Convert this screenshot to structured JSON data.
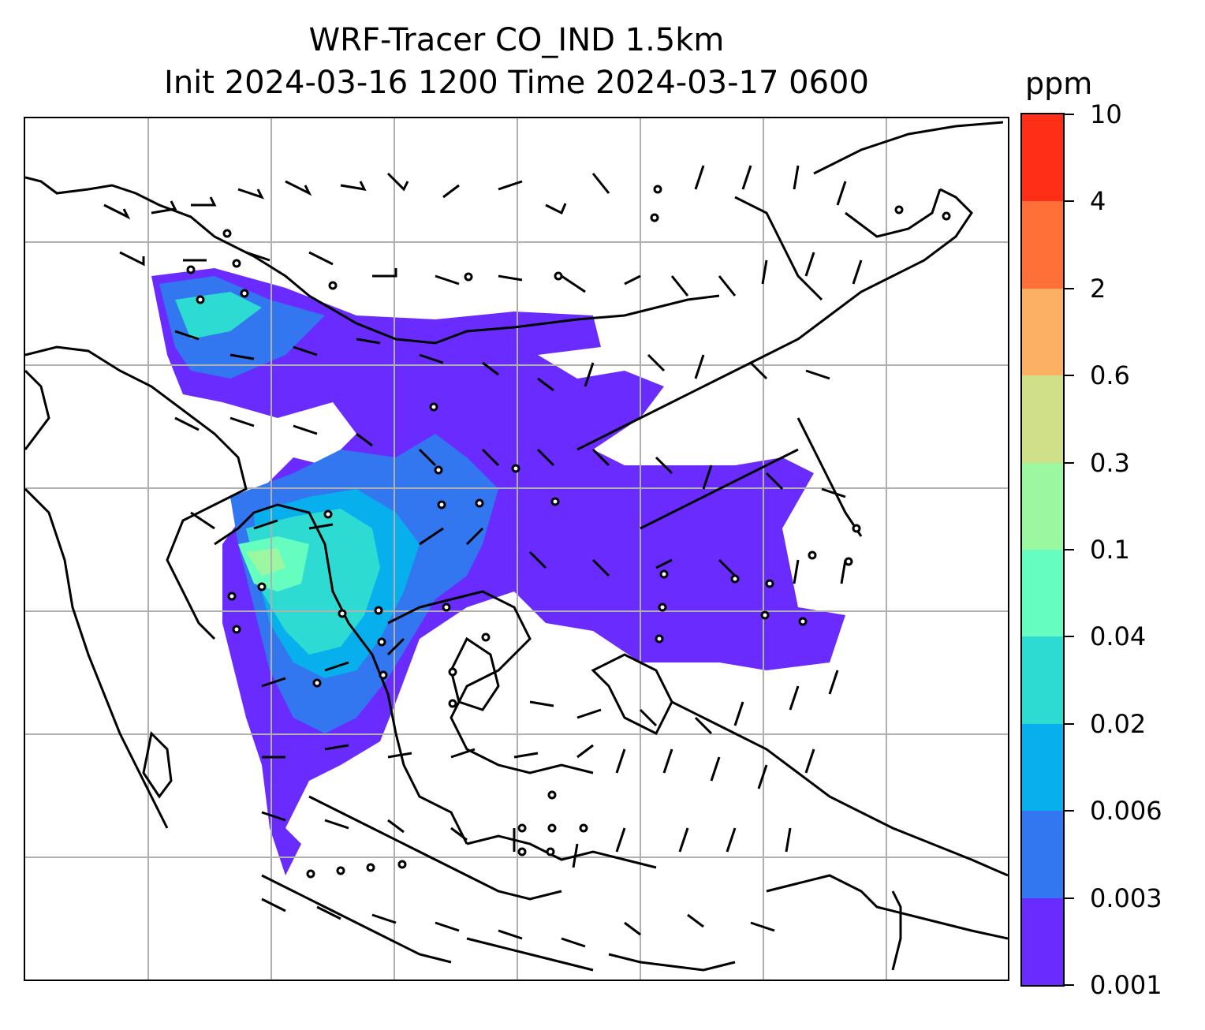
{
  "title": {
    "line1": "WRF-Tracer CO_IND 1.5km",
    "line2": "Init 2024-03-16 1200 Time 2024-03-17 0600"
  },
  "colorbar": {
    "unit": "ppm",
    "levels": [
      "0.001",
      "0.003",
      "0.006",
      "0.02",
      "0.04",
      "0.1",
      "0.3",
      "0.6",
      "2",
      "4",
      "10"
    ],
    "colors": [
      "#6a2bff",
      "#3276f0",
      "#07b0ec",
      "#2ddbd2",
      "#66fdc0",
      "#9cf8a0",
      "#d0e088",
      "#fcb064",
      "#ff7038",
      "#ff2e17"
    ]
  },
  "map": {
    "gridlines": "on",
    "coastline_color": "#000000",
    "grid_color": "#b0b0b0",
    "wind_barbs": "on"
  }
}
